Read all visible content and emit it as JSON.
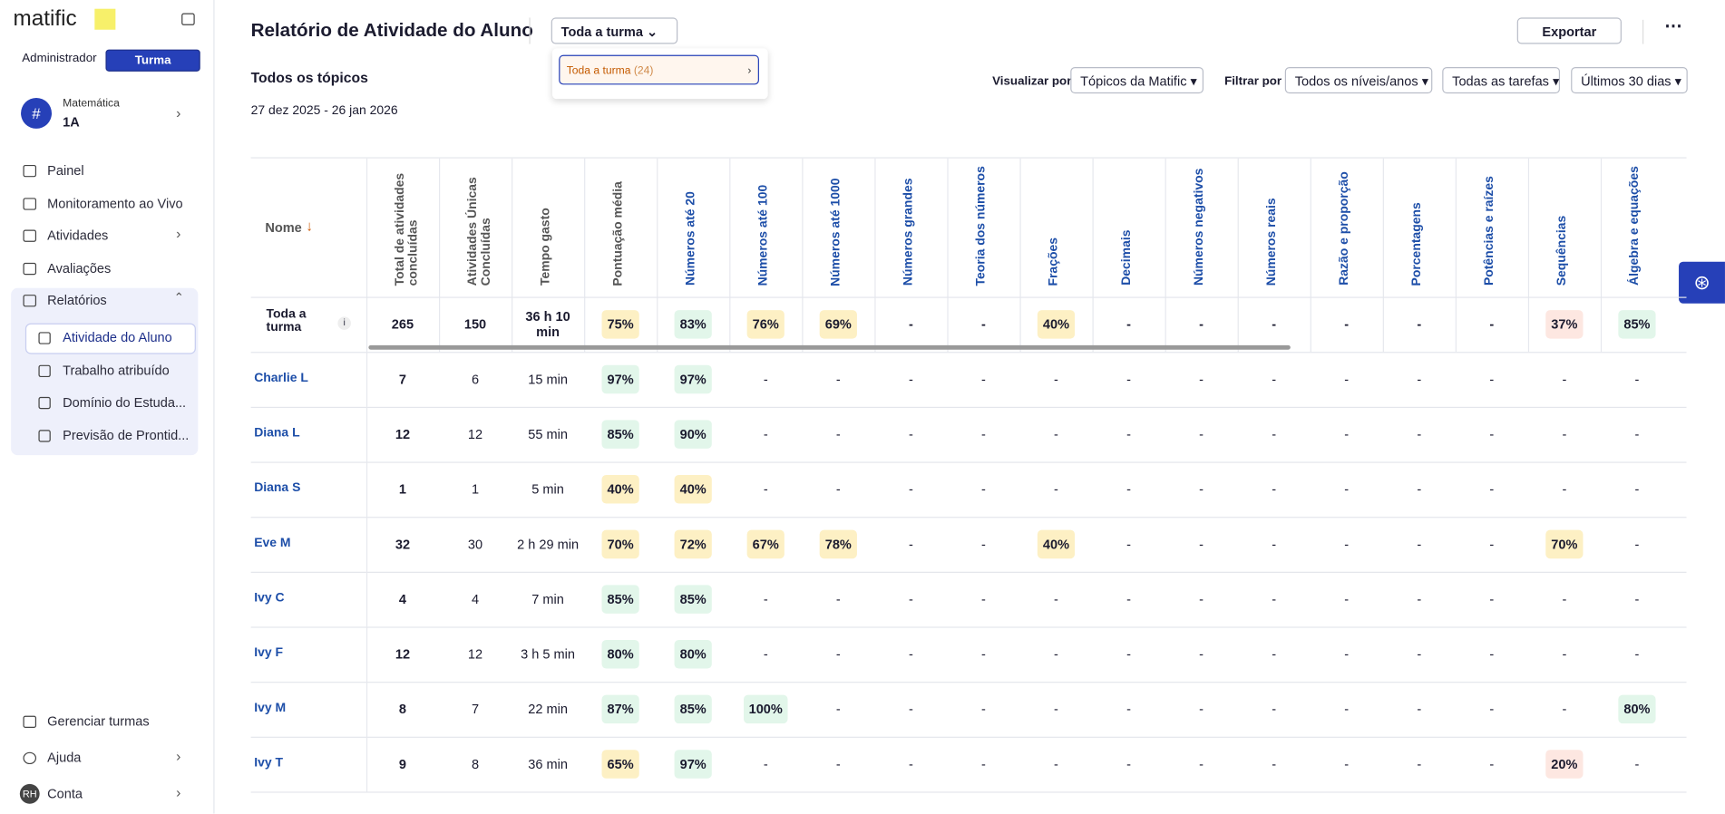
{
  "sidebar": {
    "logo": "matific",
    "tabs": [
      "Administrador",
      "Turma"
    ],
    "class": {
      "subject": "Matemática",
      "name": "1A"
    },
    "nav": [
      "Painel",
      "Monitoramento ao Vivo",
      "Atividades",
      "Avaliações",
      "Relatórios"
    ],
    "reports": [
      "Atividade do Aluno",
      "Trabalho atribuído",
      "Domínio do Estuda...",
      "Previsão de Prontid..."
    ],
    "bottom": [
      "Gerenciar turmas",
      "Ajuda",
      "Conta"
    ],
    "avatar": "RH"
  },
  "header": {
    "title": "Relatório de Atividade do Aluno",
    "class_select": "Toda a turma",
    "export": "Exportar"
  },
  "dropdown": {
    "option": "Toda a turma",
    "count": "(24)"
  },
  "report": {
    "subtitle": "Todos os tópicos",
    "date_range": "27 dez 2025 - 26 jan 2026"
  },
  "filters": {
    "view_label": "Visualizar por",
    "view": "Tópicos da Matific",
    "filter_label": "Filtrar por",
    "options": [
      "Todos os níveis/anos",
      "Todas as tarefas",
      "Últimos 30 dias"
    ]
  },
  "table": {
    "name_header": "Nome",
    "columns": [
      "Total de atividades concluídas",
      "Atividades Únicas Concluídas",
      "Tempo gasto",
      "Pontuação média",
      "Números até 20",
      "Números até 100",
      "Números até 1000",
      "Números grandes",
      "Teoria dos números",
      "Frações",
      "Decimais",
      "Números negativos",
      "Números reais",
      "Razão e proporção",
      "Porcentagens",
      "Potências e raízes",
      "Sequências",
      "Álgebra e equações"
    ],
    "summary": {
      "name": "Toda a turma",
      "cells": [
        265,
        150,
        "36 h 10 min",
        "75%",
        "83%",
        "76%",
        "69%",
        "-",
        "-",
        "40%",
        "-",
        "-",
        "-",
        "-",
        "-",
        "-",
        "37%",
        "85%"
      ]
    },
    "rows": [
      {
        "name": "Charlie L",
        "cells": [
          7,
          6,
          "15 min",
          "97%",
          "97%",
          "-",
          "-",
          "-",
          "-",
          "-",
          "-",
          "-",
          "-",
          "-",
          "-",
          "-",
          "-",
          "-"
        ]
      },
      {
        "name": "Diana L",
        "cells": [
          12,
          12,
          "55 min",
          "85%",
          "90%",
          "-",
          "-",
          "-",
          "-",
          "-",
          "-",
          "-",
          "-",
          "-",
          "-",
          "-",
          "-",
          "-"
        ]
      },
      {
        "name": "Diana S",
        "cells": [
          1,
          1,
          "5 min",
          "40%",
          "40%",
          "-",
          "-",
          "-",
          "-",
          "-",
          "-",
          "-",
          "-",
          "-",
          "-",
          "-",
          "-",
          "-"
        ]
      },
      {
        "name": "Eve M",
        "cells": [
          32,
          30,
          "2 h 29 min",
          "70%",
          "72%",
          "67%",
          "78%",
          "-",
          "-",
          "40%",
          "-",
          "-",
          "-",
          "-",
          "-",
          "-",
          "70%",
          "-"
        ]
      },
      {
        "name": "Ivy C",
        "cells": [
          4,
          4,
          "7 min",
          "85%",
          "85%",
          "-",
          "-",
          "-",
          "-",
          "-",
          "-",
          "-",
          "-",
          "-",
          "-",
          "-",
          "-",
          "-"
        ]
      },
      {
        "name": "Ivy F",
        "cells": [
          12,
          12,
          "3 h 5 min",
          "80%",
          "80%",
          "-",
          "-",
          "-",
          "-",
          "-",
          "-",
          "-",
          "-",
          "-",
          "-",
          "-",
          "-",
          "-"
        ]
      },
      {
        "name": "Ivy M",
        "cells": [
          8,
          7,
          "22 min",
          "87%",
          "85%",
          "100%",
          "-",
          "-",
          "-",
          "-",
          "-",
          "-",
          "-",
          "-",
          "-",
          "-",
          "-",
          "80%"
        ]
      },
      {
        "name": "Ivy T",
        "cells": [
          9,
          8,
          "36 min",
          "65%",
          "97%",
          "-",
          "-",
          "-",
          "-",
          "-",
          "-",
          "-",
          "-",
          "-",
          "-",
          "-",
          "20%",
          "-"
        ]
      }
    ]
  }
}
